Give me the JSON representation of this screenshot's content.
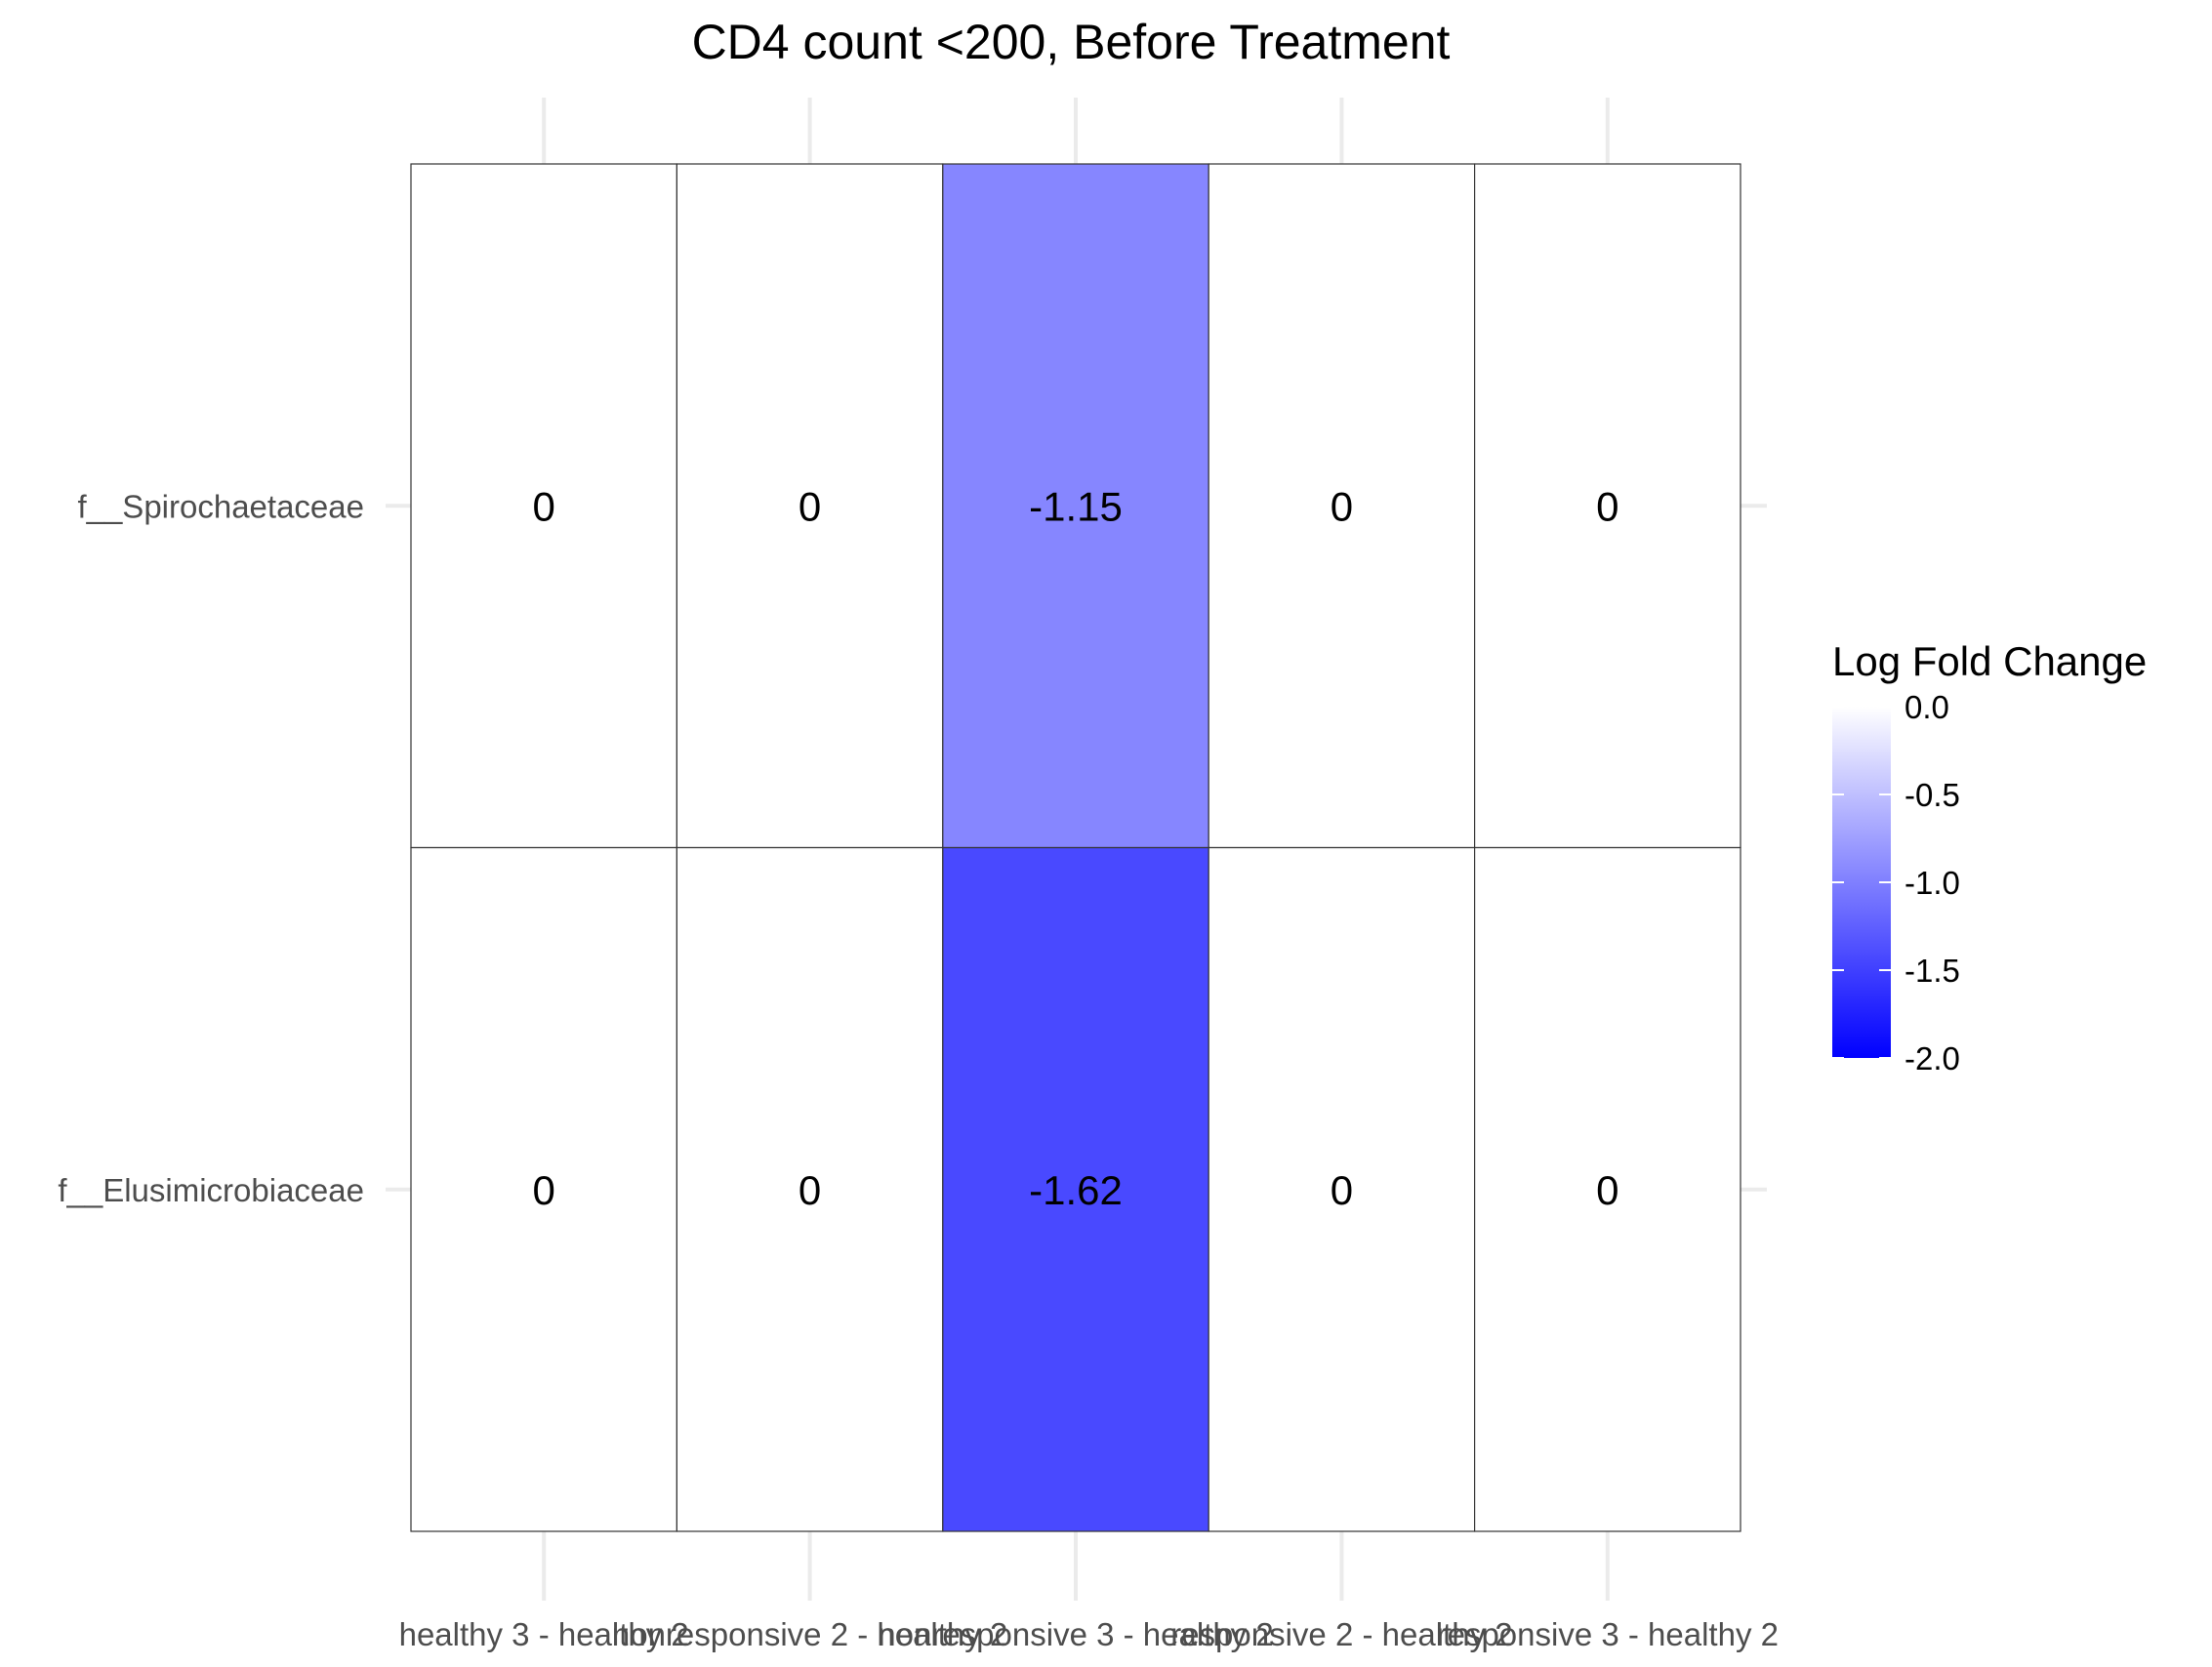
{
  "chart_data": {
    "type": "heatmap",
    "title": "CD4 count <200, Before Treatment",
    "xlabel": "",
    "ylabel": "",
    "x_categories": [
      "healthy 3 - healthy 2",
      "nonresponsive 2 - healthy 2",
      "nonresponsive 3 - healthy 2",
      "responsive 2 - healthy 2",
      "responsive 3 - healthy 2"
    ],
    "y_categories": [
      "f__Spirochaetaceae",
      "f__Elusimicrobiaceae"
    ],
    "values": [
      [
        0,
        0,
        -1.15,
        0,
        0
      ],
      [
        0,
        0,
        -1.62,
        0,
        0
      ]
    ],
    "value_labels": [
      [
        "0",
        "0",
        "-1.15",
        "0",
        "0"
      ],
      [
        "0",
        "0",
        "-1.62",
        "0",
        "0"
      ]
    ],
    "legend": {
      "title": "Log Fold Change",
      "position": "right",
      "range": [
        -2.0,
        0.0
      ],
      "ticks": [
        0.0,
        -0.5,
        -1.0,
        -1.5,
        -2.0
      ],
      "tick_labels": [
        "0.0",
        "-0.5",
        "-1.0",
        "-1.5",
        "-2.0"
      ],
      "low_color": "#0000ff",
      "high_color": "#ffffff"
    },
    "grid": true
  }
}
